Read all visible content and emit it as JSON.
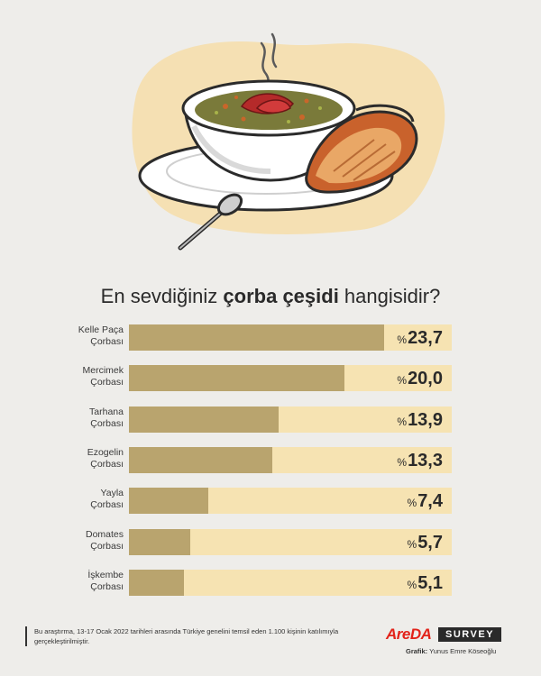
{
  "title": {
    "part1": "En sevdiğiniz ",
    "bold": "çorba çeşidi",
    "part2": " hangisidir?"
  },
  "chart_data": {
    "type": "bar",
    "orientation": "horizontal",
    "title": "En sevdiğiniz çorba çeşidi hangisidir?",
    "categories": [
      [
        "Kelle Paça",
        "Çorbası"
      ],
      [
        "Mercimek",
        "Çorbası"
      ],
      [
        "Tarhana",
        "Çorbası"
      ],
      [
        "Ezogelin",
        "Çorbası"
      ],
      [
        "Yayla",
        "Çorbası"
      ],
      [
        "Domates",
        "Çorbası"
      ],
      [
        "İşkembe",
        "Çorbası"
      ]
    ],
    "values": [
      23.7,
      20.0,
      13.9,
      13.3,
      7.4,
      5.7,
      5.1
    ],
    "value_labels": [
      "23,7",
      "20,0",
      "13,9",
      "13,3",
      "7,4",
      "5,7",
      "5,1"
    ],
    "value_prefix": "%",
    "xlim": [
      0,
      30
    ],
    "colors": {
      "fill": "#b9a46e",
      "track": "#f6e3b2"
    }
  },
  "footer": {
    "note": "Bu araştırma, 13-17 Ocak 2022 tarihleri arasında Türkiye genelini temsil eden 1.100 kişinin katılımıyla gerçekleştirilmiştir."
  },
  "brand": {
    "logo": "AreDA",
    "survey": "SURVEY",
    "credit_label": "Grafik:",
    "credit_name": " Yunus Emre Köseoğlu"
  }
}
